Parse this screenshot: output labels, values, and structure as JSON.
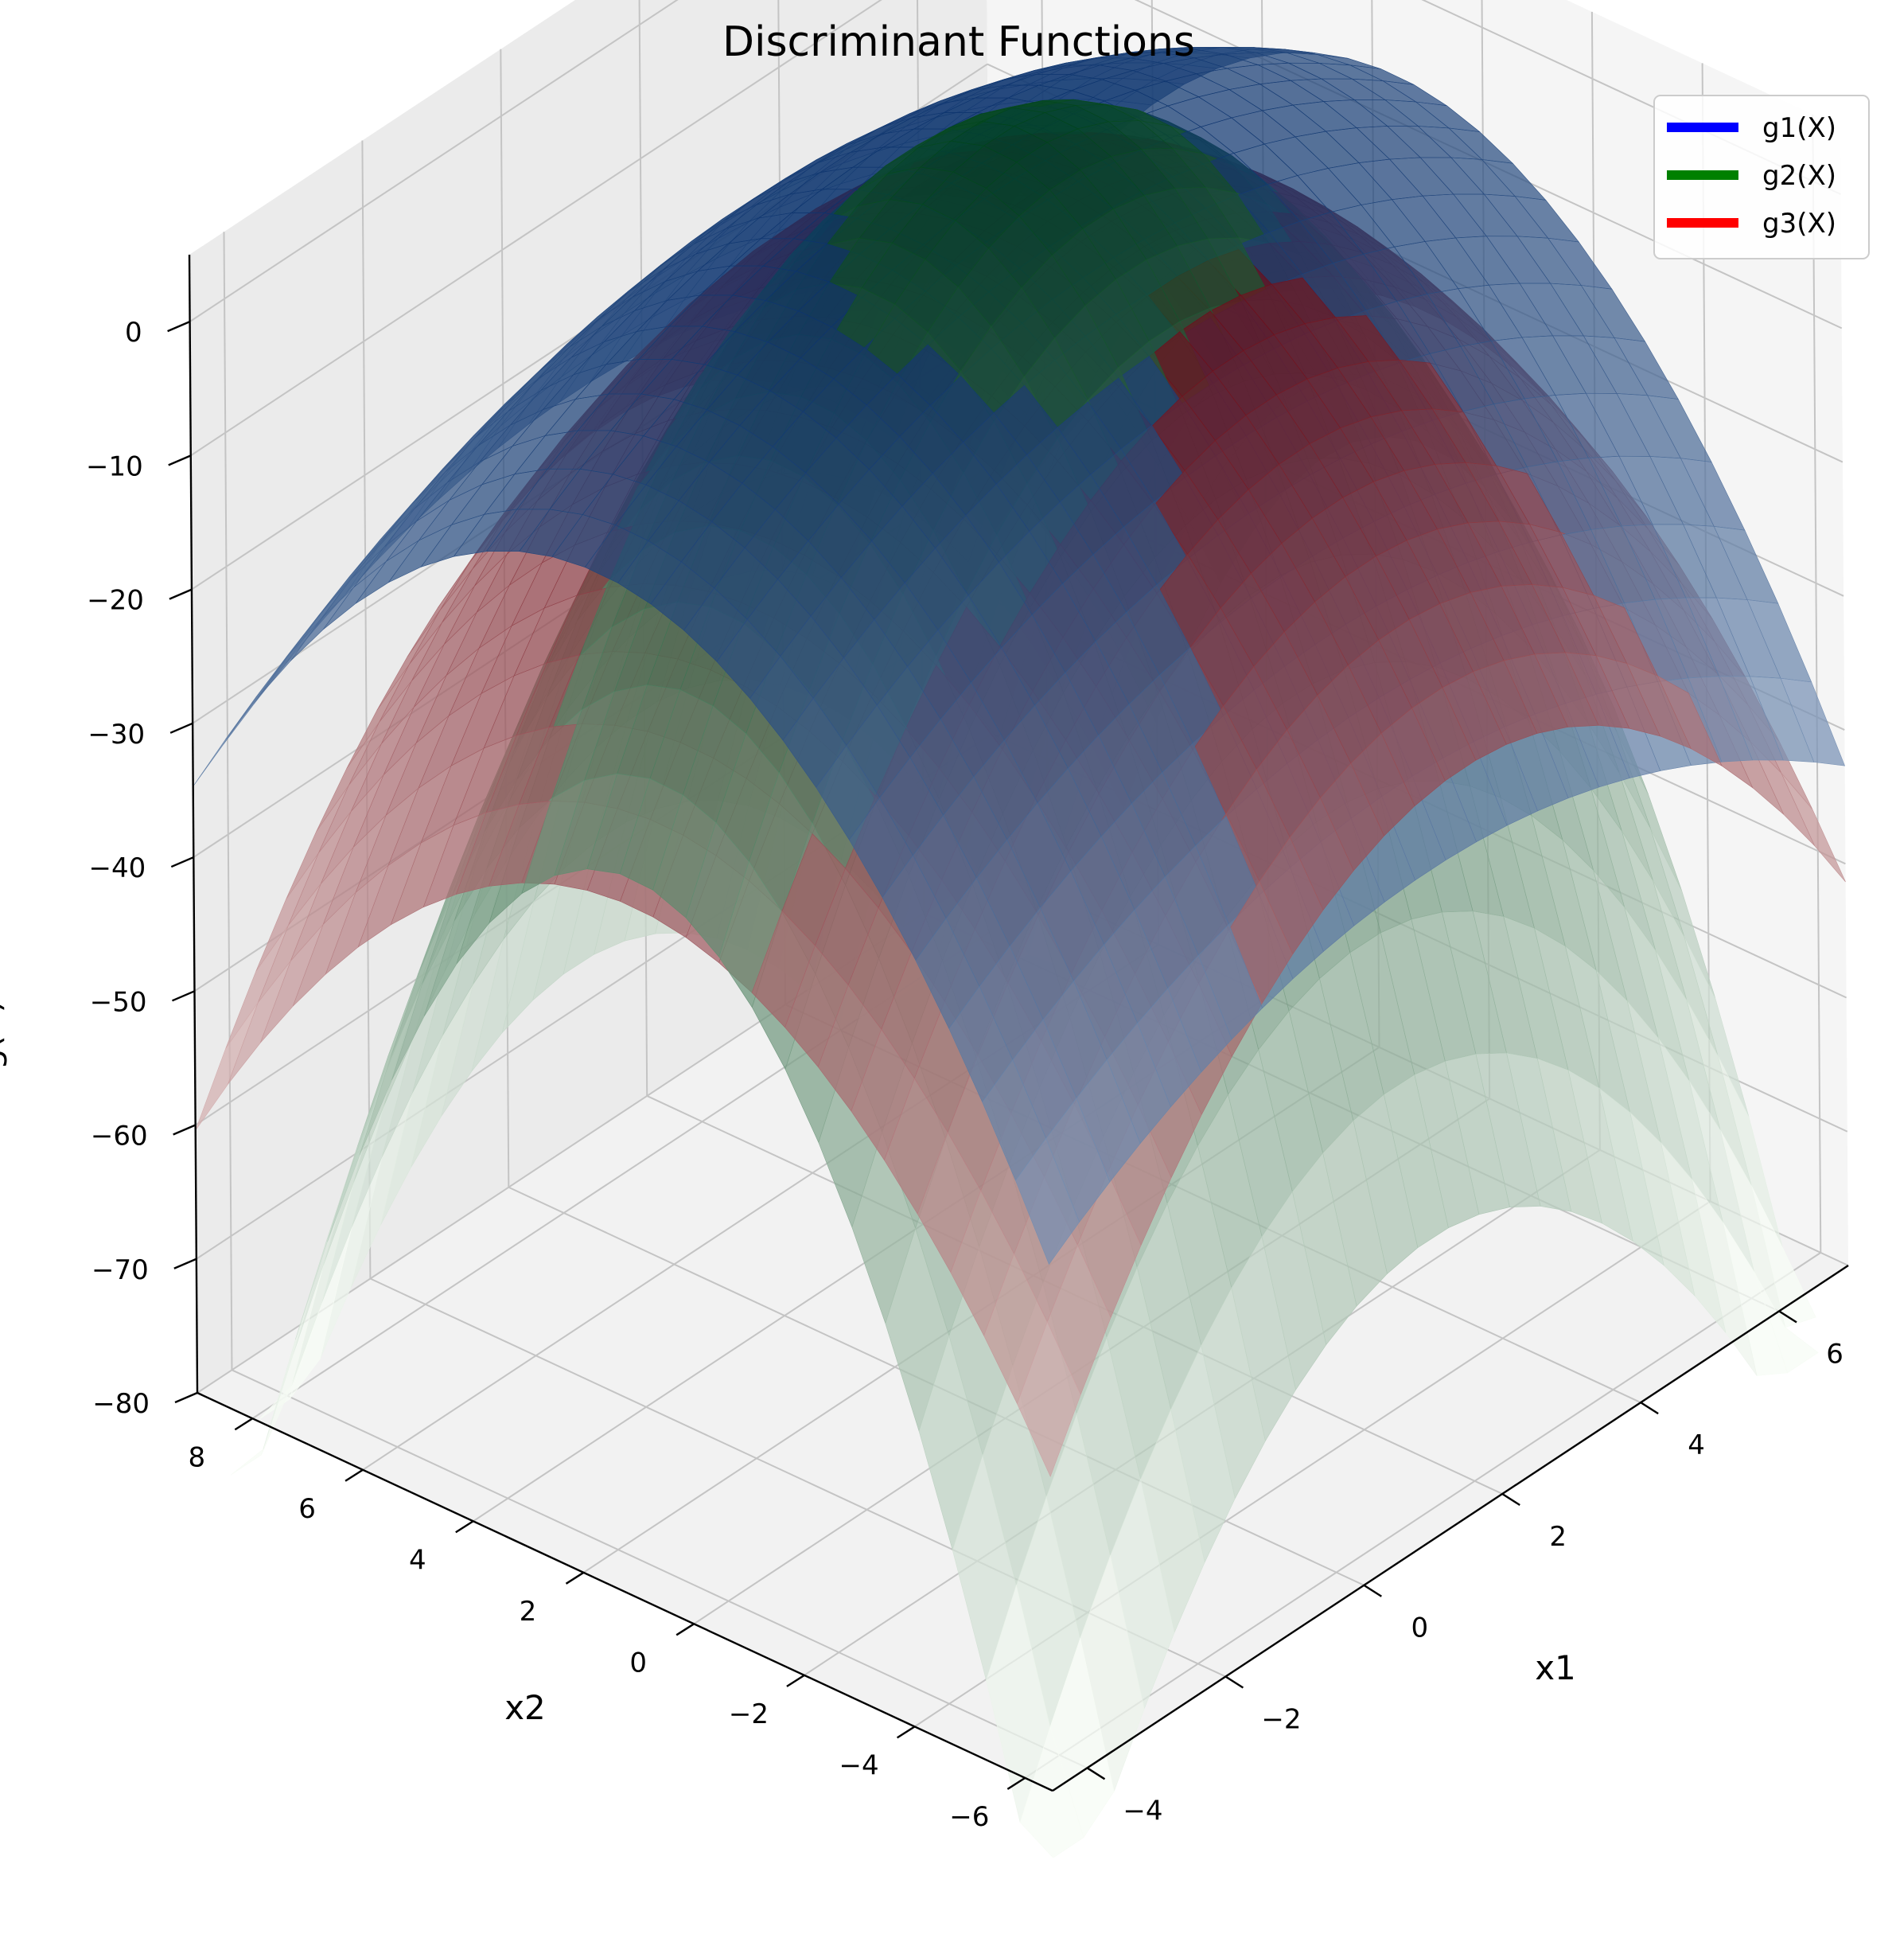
{
  "chart_data": {
    "type": "surface3d",
    "title": "Discriminant Functions",
    "xlabel": "x1",
    "ylabel": "x2",
    "zlabel": "g(X)",
    "x_ticks": [
      "−4",
      "−2",
      "0",
      "2",
      "4",
      "6"
    ],
    "y_ticks": [
      "−6",
      "−4",
      "−2",
      "0",
      "2",
      "4",
      "6",
      "8"
    ],
    "z_ticks": [
      "−80",
      "−70",
      "−60",
      "−50",
      "−40",
      "−30",
      "−20",
      "−10",
      "0"
    ],
    "xlim": [
      -4.5,
      7
    ],
    "ylim": [
      -6.5,
      9
    ],
    "zlim": [
      -80,
      5
    ],
    "grid": true,
    "legend_position": "top-right",
    "series": [
      {
        "name": "g1(X)",
        "color": "#0000ff",
        "colormap": "Blues",
        "peak": [
          1.0,
          1.6
        ],
        "peak_value": 6.0,
        "curvature": [
          0.35,
          0.55
        ]
      },
      {
        "name": "g2(X)",
        "color": "#008000",
        "colormap": "Greens",
        "peak": [
          1.0,
          1.0
        ],
        "peak_value": 10.0,
        "curvature": [
          1.2,
          1.2
        ]
      },
      {
        "name": "g3(X)",
        "color": "#ff0000",
        "colormap": "Reds",
        "peak": [
          1.5,
          1.0
        ],
        "peak_value": 4.0,
        "curvature": [
          0.9,
          0.5
        ]
      }
    ]
  }
}
